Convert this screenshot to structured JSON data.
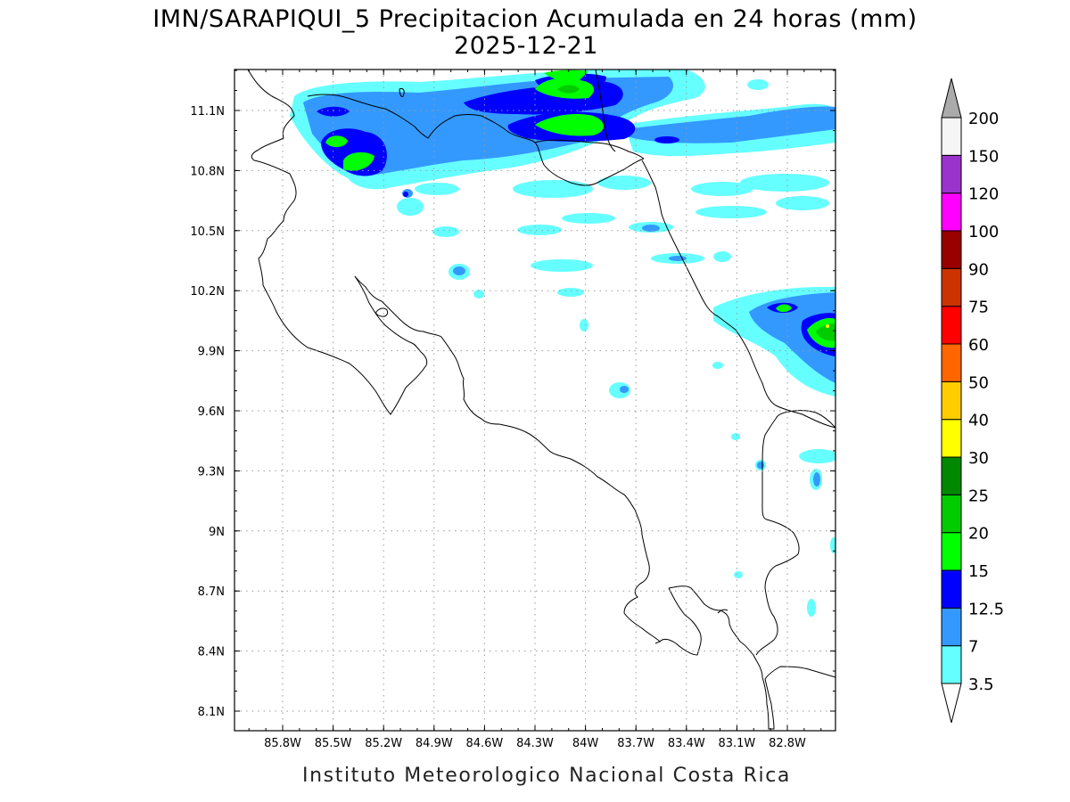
{
  "title": "IMN/SARAPIQUI_5 Precipitacion Acumulada en 24 horas (mm)",
  "subtitle": "2025-12-21",
  "credit": "Instituto Meteorologico Nacional Costa Rica",
  "map": {
    "lon_range": [
      -86.0,
      -82.5
    ],
    "lat_range": [
      8.0,
      11.3
    ],
    "lon_ticks": [
      {
        "v": -85.8,
        "label": "85.8W"
      },
      {
        "v": -85.5,
        "label": "85.5W"
      },
      {
        "v": -85.2,
        "label": "85.2W"
      },
      {
        "v": -84.9,
        "label": "84.9W"
      },
      {
        "v": -84.6,
        "label": "84.6W"
      },
      {
        "v": -84.3,
        "label": "84.3W"
      },
      {
        "v": -84.0,
        "label": "84W"
      },
      {
        "v": -83.7,
        "label": "83.7W"
      },
      {
        "v": -83.4,
        "label": "83.4W"
      },
      {
        "v": -83.1,
        "label": "83.1W"
      },
      {
        "v": -82.8,
        "label": "82.8W"
      }
    ],
    "lat_ticks": [
      {
        "v": 11.1,
        "label": "11.1N"
      },
      {
        "v": 10.8,
        "label": "10.8N"
      },
      {
        "v": 10.5,
        "label": "10.5N"
      },
      {
        "v": 10.2,
        "label": "10.2N"
      },
      {
        "v": 9.9,
        "label": "9.9N"
      },
      {
        "v": 9.6,
        "label": "9.6N"
      },
      {
        "v": 9.3,
        "label": "9.3N"
      },
      {
        "v": 9.0,
        "label": "9N"
      },
      {
        "v": 8.7,
        "label": "8.7N"
      },
      {
        "v": 8.4,
        "label": "8.4N"
      },
      {
        "v": 8.1,
        "label": "8.1N"
      }
    ],
    "grid": "dotted"
  },
  "legend": {
    "levels": [
      {
        "label": "3.5",
        "color": "#66ffff"
      },
      {
        "label": "7",
        "color": "#3399ff"
      },
      {
        "label": "12.5",
        "color": "#0000ff"
      },
      {
        "label": "15",
        "color": "#00ff00"
      },
      {
        "label": "20",
        "color": "#00cc00"
      },
      {
        "label": "25",
        "color": "#008800"
      },
      {
        "label": "30",
        "color": "#ffff00"
      },
      {
        "label": "40",
        "color": "#ffcc00"
      },
      {
        "label": "50",
        "color": "#ff6600"
      },
      {
        "label": "60",
        "color": "#ff0000"
      },
      {
        "label": "75",
        "color": "#cc3300"
      },
      {
        "label": "90",
        "color": "#990000"
      },
      {
        "label": "100",
        "color": "#ff00ff"
      },
      {
        "label": "120",
        "color": "#9933cc"
      },
      {
        "label": "150",
        "color": "#f5f5f5"
      },
      {
        "label": "200",
        "color": "#aaaaaa"
      }
    ],
    "under_color": "#ffffff",
    "over_color": "#aaaaaa"
  }
}
